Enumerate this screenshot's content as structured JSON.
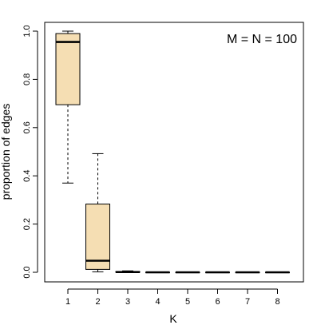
{
  "chart_data": {
    "type": "boxplot",
    "title": "",
    "annotation": "M = N = 100",
    "xlabel": "K",
    "ylabel": "proportion of edges",
    "categories": [
      "1",
      "2",
      "3",
      "4",
      "5",
      "6",
      "7",
      "8"
    ],
    "ylim": [
      0,
      1
    ],
    "yticks": [
      0.0,
      0.2,
      0.4,
      0.6,
      0.8,
      1.0
    ],
    "ytick_labels": [
      "0.0",
      "0.2",
      "0.4",
      "0.6",
      "0.8",
      "1.0"
    ],
    "boxes": [
      {
        "category": "1",
        "whisker_low": 0.37,
        "q1": 0.695,
        "median": 0.955,
        "q3": 0.99,
        "whisker_high": 1.0
      },
      {
        "category": "2",
        "whisker_low": 0.002,
        "q1": 0.012,
        "median": 0.048,
        "q3": 0.283,
        "whisker_high": 0.492
      },
      {
        "category": "3",
        "whisker_low": 0.0,
        "q1": 0.0,
        "median": 0.001,
        "q3": 0.003,
        "whisker_high": 0.006
      },
      {
        "category": "4",
        "whisker_low": 0.0,
        "q1": 0.0,
        "median": 0.0,
        "q3": 0.0,
        "whisker_high": 0.0
      },
      {
        "category": "5",
        "whisker_low": 0.0,
        "q1": 0.0,
        "median": 0.0,
        "q3": 0.0,
        "whisker_high": 0.0
      },
      {
        "category": "6",
        "whisker_low": 0.0,
        "q1": 0.0,
        "median": 0.0,
        "q3": 0.0,
        "whisker_high": 0.0
      },
      {
        "category": "7",
        "whisker_low": 0.0,
        "q1": 0.0,
        "median": 0.0,
        "q3": 0.0,
        "whisker_high": 0.0
      },
      {
        "category": "8",
        "whisker_low": 0.0,
        "q1": 0.0,
        "median": 0.0,
        "q3": 0.0,
        "whisker_high": 0.0
      }
    ],
    "box_fill": "#f5deb3",
    "box_stroke": "#000000",
    "grid": false,
    "legend": "none"
  }
}
